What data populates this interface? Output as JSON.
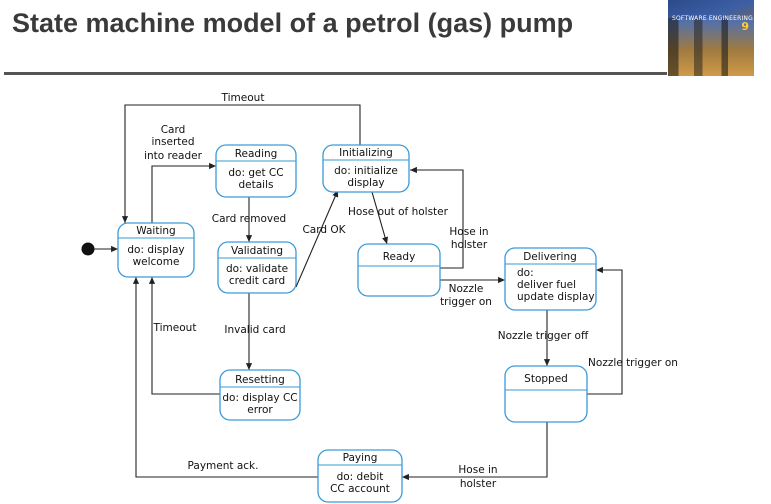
{
  "slide": {
    "title": "State machine model of a petrol (gas) pump"
  },
  "cover": {
    "label": "SOFTWARE ENGINEERING",
    "edition": "9"
  },
  "states": {
    "waiting": {
      "name": "Waiting",
      "activity": [
        "do: display",
        "welcome"
      ]
    },
    "reading": {
      "name": "Reading",
      "activity": [
        "do: get CC",
        "details"
      ]
    },
    "initializing": {
      "name": "Initializing",
      "activity": [
        "do: initialize",
        "display"
      ]
    },
    "validating": {
      "name": "Validating",
      "activity": [
        "do: validate",
        "credit card"
      ]
    },
    "ready": {
      "name": "Ready",
      "activity": []
    },
    "delivering": {
      "name": "Delivering",
      "activity": [
        "do:",
        "deliver fuel",
        "update display"
      ]
    },
    "resetting": {
      "name": "Resetting",
      "activity": [
        "do: display CC",
        "error"
      ]
    },
    "stopped": {
      "name": "Stopped",
      "activity": []
    },
    "paying": {
      "name": "Paying",
      "activity": [
        "do: debit",
        "CC account"
      ]
    }
  },
  "transitions": {
    "timeout_top": "Timeout",
    "card_inserted": [
      "Card",
      "inserted",
      "into reader"
    ],
    "card_removed": "Card removed",
    "card_ok": "Card OK",
    "hose_out": "Hose out of holster",
    "hose_in_ready": [
      "Hose in",
      "holster"
    ],
    "nozzle_on_ready": [
      "Nozzle",
      "trigger on"
    ],
    "timeout_left": "Timeout",
    "invalid_card": "Invalid card",
    "nozzle_off": "Nozzle trigger off",
    "nozzle_on_stopped": "Nozzle trigger on",
    "payment_ack": "Payment ack.",
    "hose_in_stopped": [
      "Hose in",
      "holster"
    ]
  }
}
